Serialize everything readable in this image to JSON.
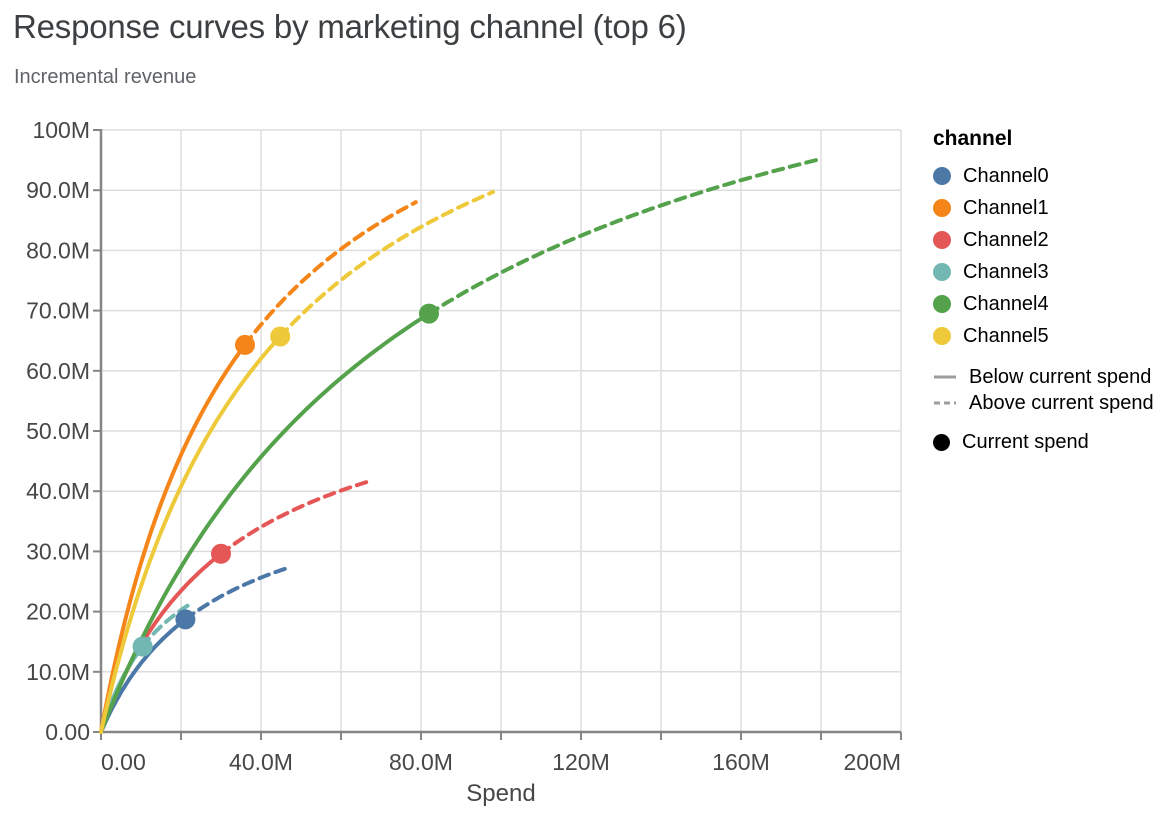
{
  "title": "Response curves by marketing channel (top 6)",
  "subtitle": "Incremental revenue",
  "x_axis_title": "Spend",
  "legend": {
    "title": "channel",
    "below_label": "Below current spend",
    "above_label": "Above current spend",
    "current_label": "Current spend",
    "line_symbol_color": "#9d9d9d",
    "point_symbol_color": "#000000"
  },
  "chart_data": {
    "type": "line",
    "title": "Response curves by marketing channel (top 6)",
    "subtitle": "Incremental revenue",
    "xlabel": "Spend",
    "ylabel": "Incremental revenue",
    "values_unit": "millions",
    "xlim": [
      0,
      200
    ],
    "ylim": [
      0,
      100
    ],
    "grid": true,
    "legend_position": "right",
    "x_axis": {
      "title": "Spend",
      "max": 200,
      "grid_values": [
        0,
        20,
        40,
        60,
        80,
        100,
        120,
        140,
        160,
        180,
        200
      ],
      "ticks": [
        {
          "value": 0,
          "label": "0.00",
          "flush": "left"
        },
        {
          "value": 40,
          "label": "40.0M"
        },
        {
          "value": 80,
          "label": "80.0M"
        },
        {
          "value": 120,
          "label": "120M"
        },
        {
          "value": 160,
          "label": "160M"
        },
        {
          "value": 200,
          "label": "200M",
          "flush": "right"
        }
      ]
    },
    "y_axis": {
      "max": 100,
      "grid_values": [
        0,
        10,
        20,
        30,
        40,
        50,
        60,
        70,
        80,
        90,
        100
      ],
      "ticks": [
        {
          "value": 0,
          "label": "0.00"
        },
        {
          "value": 10,
          "label": "10.0M"
        },
        {
          "value": 20,
          "label": "20.0M"
        },
        {
          "value": 30,
          "label": "30.0M"
        },
        {
          "value": 40,
          "label": "40.0M"
        },
        {
          "value": 50,
          "label": "50.0M"
        },
        {
          "value": 60,
          "label": "60.0M"
        },
        {
          "value": 70,
          "label": "70.0M"
        },
        {
          "value": 80,
          "label": "80.0M"
        },
        {
          "value": 90,
          "label": "90.0M"
        },
        {
          "value": 100,
          "label": "100M"
        }
      ]
    },
    "series": [
      {
        "name": "Channel0",
        "color": "#4c78a8",
        "curve_start": [
          0,
          0
        ],
        "current_spend": 21.1,
        "current_revenue": 18.7,
        "max_spend": 46.4,
        "max_revenue": 27.2
      },
      {
        "name": "Channel1",
        "color": "#f58518",
        "curve_start": [
          0,
          0
        ],
        "current_spend": 36.0,
        "current_revenue": 64.3,
        "max_spend": 78.7,
        "max_revenue": 88.0
      },
      {
        "name": "Channel2",
        "color": "#e45756",
        "curve_start": [
          0,
          0
        ],
        "current_spend": 30.0,
        "current_revenue": 29.6,
        "max_spend": 66.3,
        "max_revenue": 41.5
      },
      {
        "name": "Channel3",
        "color": "#72b7b2",
        "curve_start": [
          0,
          0
        ],
        "current_spend": 10.4,
        "current_revenue": 14.2,
        "max_spend": 22.4,
        "max_revenue": 21.3
      },
      {
        "name": "Channel4",
        "color": "#54a24b",
        "curve_start": [
          0,
          0
        ],
        "current_spend": 82.0,
        "current_revenue": 69.5,
        "max_spend": 180.0,
        "max_revenue": 95.2
      },
      {
        "name": "Channel5",
        "color": "#eeca3b",
        "curve_start": [
          0,
          0
        ],
        "current_spend": 44.8,
        "current_revenue": 65.7,
        "max_spend": 98.0,
        "max_revenue": 89.7
      }
    ],
    "line_styles": {
      "solid": "Below current spend",
      "dashed": "Above current spend",
      "point": "Current spend"
    }
  }
}
